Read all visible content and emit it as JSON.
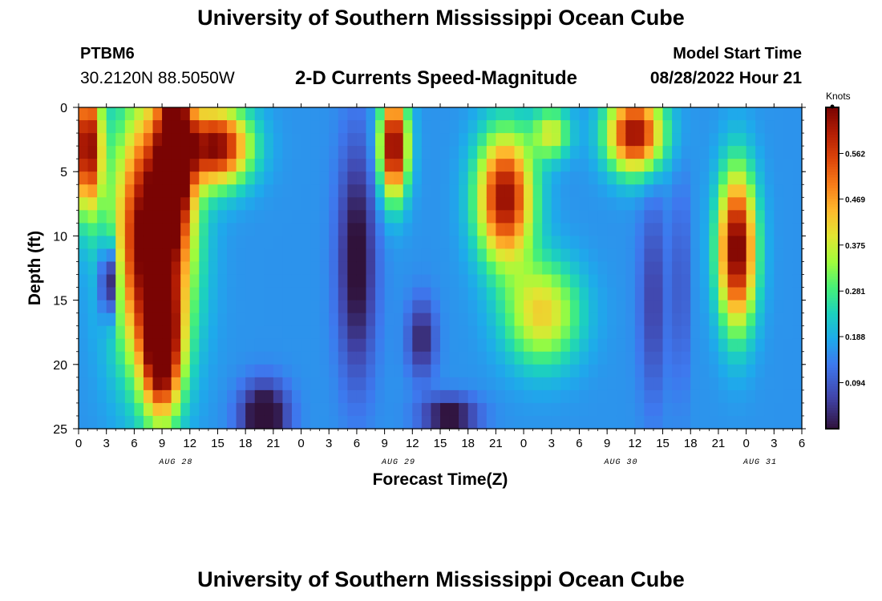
{
  "header": {
    "title": "University of Southern Mississippi Ocean Cube",
    "station": "PTBM6",
    "coords": "30.2120N  88.5050W",
    "subtitle": "2-D Currents Speed-Magnitude",
    "model_start_label": "Model Start Time",
    "model_start_value": "08/28/2022 Hour 21",
    "bottom_title": "University of Southern Mississippi Ocean Cube"
  },
  "chart_data": {
    "type": "heatmap",
    "title": "2-D Currents Speed-Magnitude",
    "xlabel": "Forecast Time(Z)",
    "ylabel": "Depth (ft)",
    "x_hours_range": [
      0,
      78
    ],
    "y_range": [
      0,
      25
    ],
    "x_tick_labels": [
      "0",
      "3",
      "6",
      "9",
      "12",
      "15",
      "18",
      "21",
      "0",
      "3",
      "6",
      "9",
      "12",
      "15",
      "18",
      "21",
      "0",
      "3",
      "6",
      "9",
      "12",
      "15",
      "18",
      "21",
      "0",
      "3",
      "6"
    ],
    "y_tick_labels": [
      "0",
      "5",
      "10",
      "15",
      "20",
      "25"
    ],
    "date_labels": [
      {
        "hour": 10.5,
        "text": "AUG 28"
      },
      {
        "hour": 34.5,
        "text": "AUG 29"
      },
      {
        "hour": 58.5,
        "text": "AUG 30"
      },
      {
        "hour": 73.5,
        "text": "AUG 31"
      }
    ],
    "colorbar": {
      "units": "Knots",
      "min": 0.0,
      "max": 0.656,
      "ticks": [
        "0.094",
        "0.188",
        "0.281",
        "0.375",
        "0.469",
        "0.562"
      ]
    },
    "speed_blobs": [
      {
        "hour": 8,
        "depth": 10,
        "w": 4.0,
        "h": 10,
        "amp": 0.58
      },
      {
        "hour": 9,
        "depth": 19,
        "w": 2.0,
        "h": 5,
        "amp": 0.45
      },
      {
        "hour": 1,
        "depth": 3,
        "w": 1.5,
        "h": 5,
        "amp": 0.5
      },
      {
        "hour": 15,
        "depth": 3,
        "w": 3.5,
        "h": 3,
        "amp": 0.48
      },
      {
        "hour": 10.5,
        "depth": 3,
        "w": 1.8,
        "h": 6,
        "amp": 0.45
      },
      {
        "hour": 34,
        "depth": 3,
        "w": 1.5,
        "h": 4,
        "amp": 0.52
      },
      {
        "hour": 46,
        "depth": 7,
        "w": 3.0,
        "h": 5,
        "amp": 0.48
      },
      {
        "hour": 60,
        "depth": 2,
        "w": 3.0,
        "h": 3,
        "amp": 0.48
      },
      {
        "hour": 71,
        "depth": 11,
        "w": 2.0,
        "h": 6,
        "amp": 0.52
      },
      {
        "hour": 50,
        "depth": 16,
        "w": 4.0,
        "h": 4,
        "amp": 0.26
      },
      {
        "hour": 51,
        "depth": 2,
        "w": 2.0,
        "h": 2,
        "amp": 0.22
      }
    ],
    "slow_blobs": [
      {
        "hour": 3.3,
        "depth": 13.5,
        "w": 0.9,
        "h": 3,
        "amp": -0.28
      },
      {
        "hour": 20,
        "depth": 24,
        "w": 2.5,
        "h": 2.5,
        "amp": -0.22
      },
      {
        "hour": 30,
        "depth": 12,
        "w": 2.0,
        "h": 9,
        "amp": -0.18
      },
      {
        "hour": 37,
        "depth": 18,
        "w": 1.5,
        "h": 3,
        "amp": -0.14
      },
      {
        "hour": 40,
        "depth": 24,
        "w": 3.0,
        "h": 1.5,
        "amp": -0.18
      },
      {
        "hour": 62,
        "depth": 15,
        "w": 1.5,
        "h": 8,
        "amp": -0.1
      },
      {
        "hour": 65,
        "depth": 14,
        "w": 0.8,
        "h": 8,
        "amp": -0.08
      }
    ],
    "base_speed": 0.16
  }
}
